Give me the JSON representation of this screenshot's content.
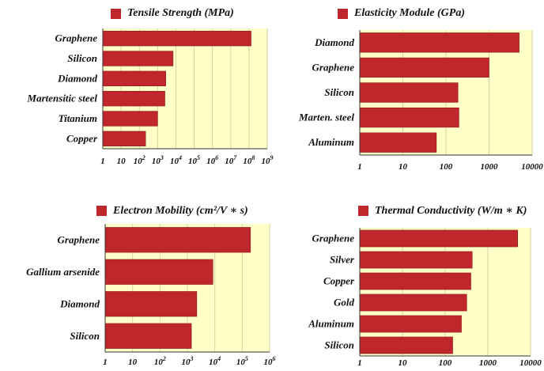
{
  "colors": {
    "bar": "#c0272d",
    "bar_edge": "#8e1b1f",
    "plot_bg": "#ffffc8",
    "grid": "#d9d2a0",
    "axis": "#333333"
  },
  "chart_data": [
    {
      "type": "bar",
      "orientation": "horizontal",
      "legend": "Tensile Strength (MPa)",
      "legend_position": "top",
      "xscale": "log",
      "xlim": [
        1,
        1000000000
      ],
      "xticks": [
        {
          "v": 1,
          "base": "1",
          "exp": ""
        },
        {
          "v": 10,
          "base": "10",
          "exp": ""
        },
        {
          "v": 100,
          "base": "10",
          "exp": "2"
        },
        {
          "v": 1000,
          "base": "10",
          "exp": "3"
        },
        {
          "v": 10000,
          "base": "10",
          "exp": "4"
        },
        {
          "v": 100000,
          "base": "10",
          "exp": "5"
        },
        {
          "v": 1000000,
          "base": "10",
          "exp": "6"
        },
        {
          "v": 10000000,
          "base": "10",
          "exp": "7"
        },
        {
          "v": 100000000,
          "base": "10",
          "exp": "8"
        },
        {
          "v": 1000000000,
          "base": "10",
          "exp": "9"
        }
      ],
      "categories": [
        "Graphene",
        "Silicon",
        "Diamond",
        "Martensitic steel",
        "Titanium",
        "Copper"
      ],
      "values": [
        130000000,
        7000,
        2800,
        2500,
        1000,
        220
      ],
      "grid": true
    },
    {
      "type": "bar",
      "orientation": "horizontal",
      "legend": "Elasticity Module (GPa)",
      "legend_position": "top",
      "xscale": "log",
      "xlim": [
        1,
        10000
      ],
      "xticks": [
        {
          "v": 1,
          "base": "1",
          "exp": ""
        },
        {
          "v": 10,
          "base": "10",
          "exp": ""
        },
        {
          "v": 100,
          "base": "100",
          "exp": ""
        },
        {
          "v": 1000,
          "base": "1000",
          "exp": ""
        },
        {
          "v": 10000,
          "base": "10000",
          "exp": ""
        }
      ],
      "categories": [
        "Diamond",
        "Graphene",
        "Silicon",
        "Marten. steel",
        "Aluminum"
      ],
      "values": [
        5000,
        1000,
        190,
        200,
        60
      ],
      "grid": true
    },
    {
      "type": "bar",
      "orientation": "horizontal",
      "legend": "Electron Mobility (cm²/V ∗ s)",
      "legend_position": "top",
      "xscale": "log",
      "xlim": [
        1,
        1000000
      ],
      "xticks": [
        {
          "v": 1,
          "base": "1",
          "exp": ""
        },
        {
          "v": 10,
          "base": "10",
          "exp": ""
        },
        {
          "v": 100,
          "base": "10",
          "exp": "2"
        },
        {
          "v": 1000,
          "base": "10",
          "exp": "3"
        },
        {
          "v": 10000,
          "base": "10",
          "exp": "4"
        },
        {
          "v": 100000,
          "base": "10",
          "exp": "5"
        },
        {
          "v": 1000000,
          "base": "10",
          "exp": "6"
        }
      ],
      "categories": [
        "Graphene",
        "Gallium arsenide",
        "Diamond",
        "Silicon"
      ],
      "values": [
        200000,
        8500,
        2200,
        1400
      ],
      "grid": true
    },
    {
      "type": "bar",
      "orientation": "horizontal",
      "legend": "Thermal Conductivity (W/m ∗ K)",
      "legend_position": "top",
      "xscale": "log",
      "xlim": [
        1,
        10000
      ],
      "xticks": [
        {
          "v": 1,
          "base": "1",
          "exp": ""
        },
        {
          "v": 10,
          "base": "10",
          "exp": ""
        },
        {
          "v": 100,
          "base": "100",
          "exp": ""
        },
        {
          "v": 1000,
          "base": "1000",
          "exp": ""
        },
        {
          "v": 10000,
          "base": "10000",
          "exp": ""
        }
      ],
      "categories": [
        "Graphene",
        "Silver",
        "Copper",
        "Gold",
        "Aluminum",
        "Silicon"
      ],
      "values": [
        5000,
        430,
        400,
        320,
        240,
        150
      ],
      "grid": true
    }
  ]
}
